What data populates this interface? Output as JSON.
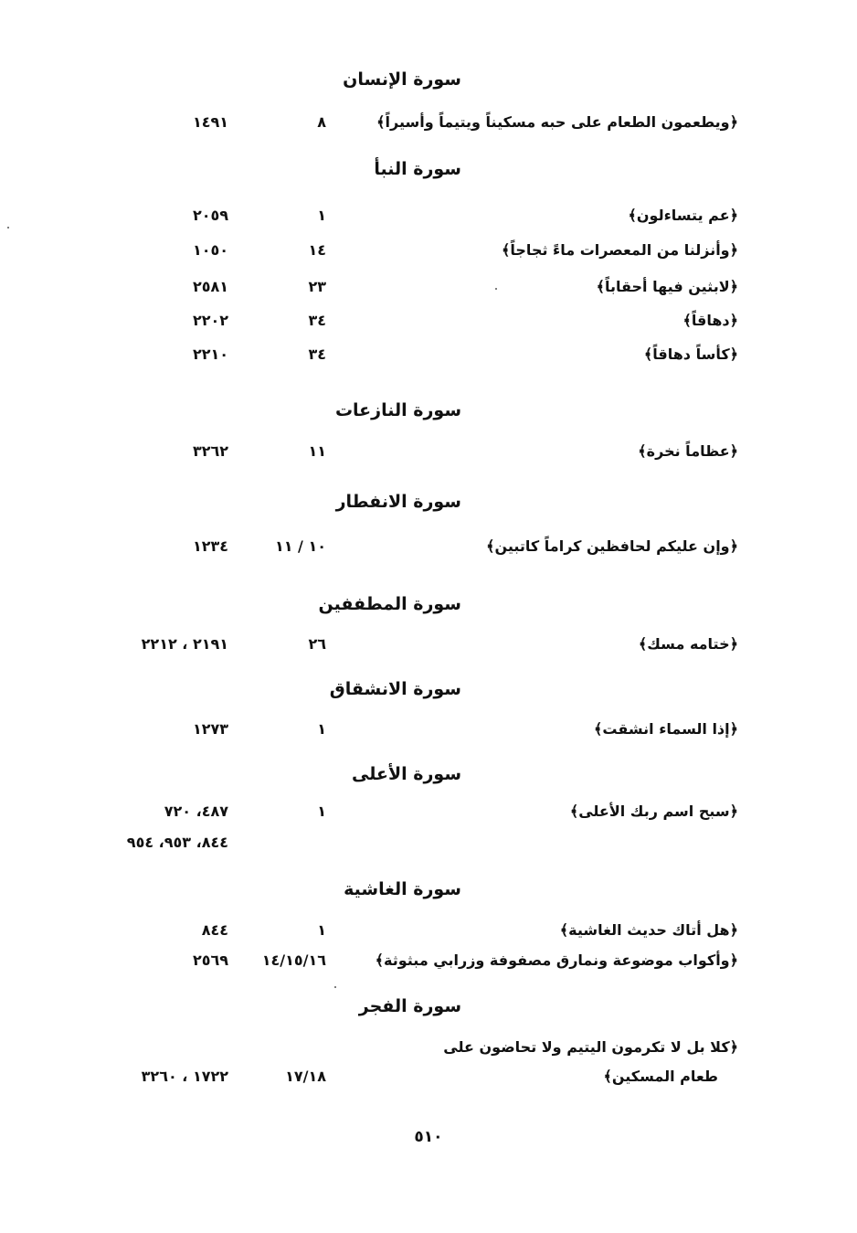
{
  "sections": [
    {
      "heading": "سورة الإنسان",
      "entries": [
        {
          "verse": "﴿ويطعمون الطعام على حبه مسكيناً ويتيماً وأسيراً﴾",
          "ayah": "٨",
          "hadith": "١٤٩١"
        }
      ]
    },
    {
      "heading": "سورة النبأ",
      "entries": [
        {
          "verse": "﴿عم يتساءلون﴾",
          "ayah": "١",
          "hadith": "٢٠٥٩"
        },
        {
          "verse": "﴿وأنزلنا من المعصرات ماءً ثجاجاً﴾",
          "ayah": "١٤",
          "hadith": "١٠٥٠"
        },
        {
          "verse": "﴿لابثين فيها أحقاباً﴾",
          "ayah": "٢٣",
          "hadith": "٢٥٨١"
        },
        {
          "verse": "﴿دهاقاً﴾",
          "ayah": "٣٤",
          "hadith": "٢٢٠٢"
        },
        {
          "verse": "﴿كأساً دهاقاً﴾",
          "ayah": "٣٤",
          "hadith": "٢٢١٠"
        }
      ]
    },
    {
      "heading": "سورة النازعات",
      "entries": [
        {
          "verse": "﴿عظاماً نخرة﴾",
          "ayah": "١١",
          "hadith": "٣٢٦٢"
        }
      ]
    },
    {
      "heading": "سورة الانفطار",
      "entries": [
        {
          "verse": "﴿وإن عليكم لحافظين كراماً كاتبين﴾",
          "ayah": "١٠ / ١١",
          "hadith": "١٢٣٤"
        }
      ]
    },
    {
      "heading": "سورة المطففين",
      "entries": [
        {
          "verse": "﴿ختامه مسك﴾",
          "ayah": "٢٦",
          "hadith": "٢١٩١ ، ٢٢١٢"
        }
      ]
    },
    {
      "heading": "سورة الانشقاق",
      "entries": [
        {
          "verse": "﴿إذا السماء انشقت﴾",
          "ayah": "١",
          "hadith": "١٢٧٣"
        }
      ]
    },
    {
      "heading": "سورة الأعلى",
      "entries": [
        {
          "verse": "﴿سبح اسم ربك الأعلى﴾",
          "ayah": "١",
          "hadith": "٤٨٧، ٧٢٠",
          "hadith_cont": "٨٤٤، ٩٥٣، ٩٥٤"
        }
      ]
    },
    {
      "heading": "سورة الغاشية",
      "entries": [
        {
          "verse": "﴿هل أتاك حديث الغاشية﴾",
          "ayah": "١",
          "hadith": "٨٤٤"
        },
        {
          "verse": "﴿وأكواب موضوعة ونمارق مصفوفة وزرابي مبثوثة﴾",
          "ayah": "١٤/١٥/١٦",
          "hadith": "٢٥٦٩"
        }
      ]
    },
    {
      "heading": "سورة الفجر",
      "entries": [
        {
          "verse": "﴿كلا بل لا تكرمون اليتيم ولا تحاضون على",
          "verse_cont": "طعام المسكين﴾",
          "ayah": "١٧/١٨",
          "hadith": "١٧٢٢ ، ٣٢٦٠"
        }
      ]
    }
  ],
  "page_number": "٥١٠"
}
